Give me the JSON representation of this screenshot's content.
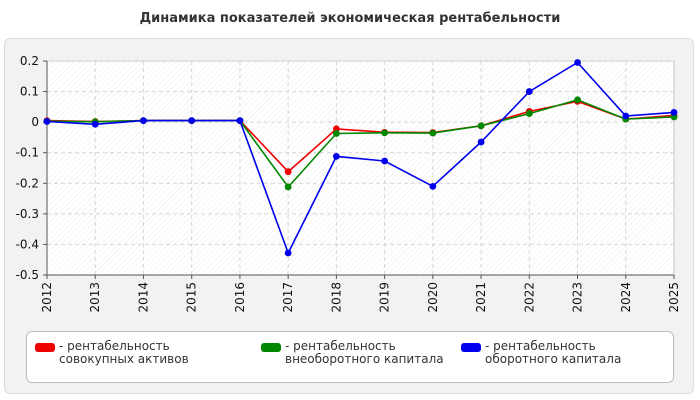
{
  "chart_data": {
    "type": "line",
    "title": "Динамика показателей экономическая рентабельности",
    "xlabel": "",
    "ylabel": "",
    "x": [
      "2012",
      "2013",
      "2014",
      "2015",
      "2016",
      "2017",
      "2018",
      "2019",
      "2020",
      "2021",
      "2022",
      "2023",
      "2024",
      "2025"
    ],
    "ylim": [
      -0.5,
      0.2
    ],
    "yticks": [
      "0.2",
      "0.1",
      "0",
      "-0.1",
      "-0.2",
      "-0.3",
      "-0.4",
      "-0.5"
    ],
    "grid": true,
    "legend_position": "bottom",
    "series": [
      {
        "name": "рентабельность совокупных активов",
        "color": "#ee0000",
        "values": [
          0.005,
          0.002,
          0.005,
          0.005,
          0.005,
          -0.162,
          -0.022,
          -0.033,
          -0.034,
          -0.012,
          0.035,
          0.068,
          0.01,
          0.022
        ]
      },
      {
        "name": "рентабельность внеоборотного капитала",
        "color": "#008800",
        "values": [
          0.003,
          0.001,
          0.005,
          0.005,
          0.005,
          -0.212,
          -0.037,
          -0.035,
          -0.036,
          -0.012,
          0.028,
          0.073,
          0.01,
          0.017
        ]
      },
      {
        "name": "рентабельность оборотного капитала",
        "color": "#0000ee",
        "values": [
          0.002,
          -0.007,
          0.005,
          0.005,
          0.005,
          -0.428,
          -0.112,
          -0.127,
          -0.21,
          -0.065,
          0.1,
          0.195,
          0.02,
          0.032
        ]
      }
    ]
  },
  "legend": {
    "items": [
      "- рентабельность совокупных активов",
      "- рентабельность внеоборотного капитала",
      "- рентабельность оборотного капитала"
    ]
  }
}
